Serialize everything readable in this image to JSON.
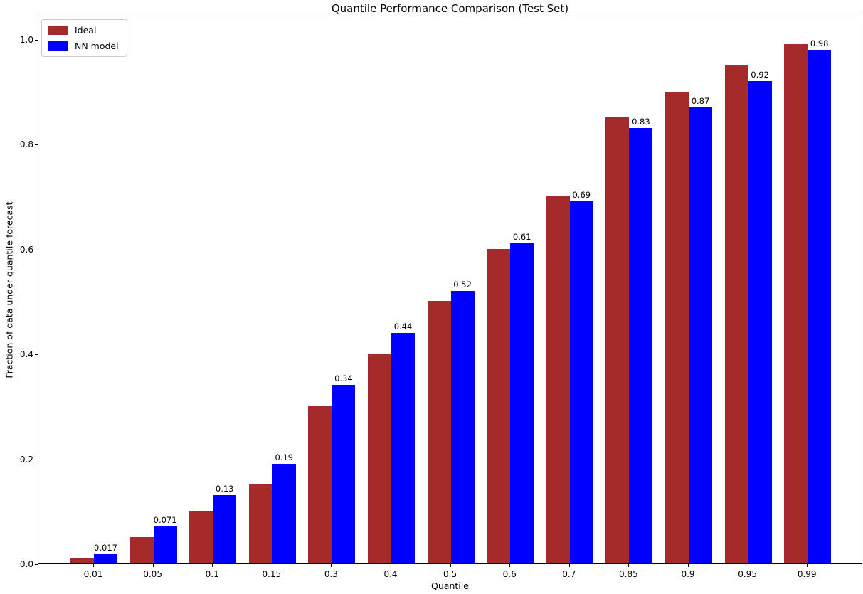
{
  "chart_data": {
    "type": "bar",
    "title": "Quantile Performance Comparison (Test Set)",
    "xlabel": "Quantile",
    "ylabel": "Fraction of data under quantile forecast",
    "categories": [
      "0.01",
      "0.05",
      "0.1",
      "0.15",
      "0.3",
      "0.4",
      "0.5",
      "0.6",
      "0.7",
      "0.85",
      "0.9",
      "0.95",
      "0.99"
    ],
    "series": [
      {
        "name": "Ideal",
        "color": "#A52A2A",
        "values": [
          0.01,
          0.05,
          0.1,
          0.15,
          0.3,
          0.4,
          0.5,
          0.6,
          0.7,
          0.85,
          0.9,
          0.95,
          0.99
        ]
      },
      {
        "name": "NN model",
        "color": "#0000FF",
        "values": [
          0.017,
          0.071,
          0.13,
          0.19,
          0.34,
          0.44,
          0.52,
          0.61,
          0.69,
          0.83,
          0.87,
          0.92,
          0.98
        ],
        "bar_labels": [
          "0.017",
          "0.071",
          "0.13",
          "0.19",
          "0.34",
          "0.44",
          "0.52",
          "0.61",
          "0.69",
          "0.83",
          "0.87",
          "0.92",
          "0.98"
        ]
      }
    ],
    "yticks": [
      "0.0",
      "0.2",
      "0.4",
      "0.6",
      "0.8",
      "1.0"
    ],
    "ylim": [
      0,
      1.046
    ],
    "grid": false,
    "legend_position": "upper left"
  }
}
